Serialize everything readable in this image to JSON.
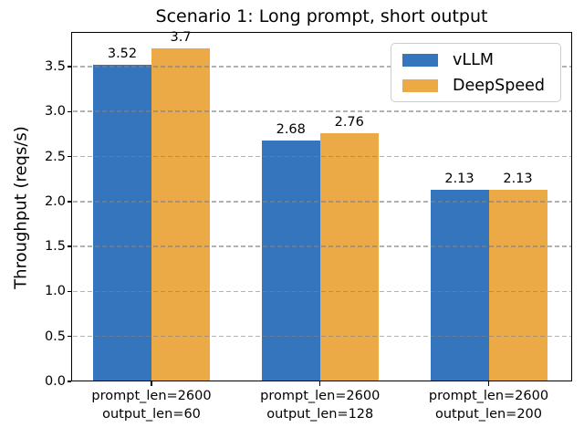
{
  "chart_data": {
    "type": "bar",
    "title": "Scenario 1: Long prompt, short output",
    "ylabel": "Throughput (reqs/s)",
    "xlabel": "",
    "categories": [
      [
        "prompt_len=2600",
        "output_len=60"
      ],
      [
        "prompt_len=2600",
        "output_len=128"
      ],
      [
        "prompt_len=2600",
        "output_len=200"
      ]
    ],
    "series": [
      {
        "name": "vLLM",
        "color": "#3575bd",
        "values": [
          3.52,
          2.68,
          2.13
        ],
        "value_labels": [
          "3.52",
          "2.68",
          "2.13"
        ]
      },
      {
        "name": "DeepSpeed",
        "color": "#ebaa45",
        "values": [
          3.7,
          2.76,
          2.13
        ],
        "value_labels": [
          "3.7",
          "2.76",
          "2.13"
        ]
      }
    ],
    "ylim": [
      0,
      3.885
    ],
    "yticks": [
      0,
      0.5,
      1,
      1.5,
      2,
      2.5,
      3,
      3.5
    ],
    "ytick_labels": [
      "0.0",
      "0.5",
      "1.0",
      "1.5",
      "2.0",
      "2.5",
      "3.0",
      "3.5"
    ],
    "grid": {
      "axis": "y",
      "style": "dashed",
      "color": "#8c8c8c"
    },
    "legend": {
      "position": "upper right",
      "entries": [
        "vLLM",
        "DeepSpeed"
      ]
    }
  }
}
